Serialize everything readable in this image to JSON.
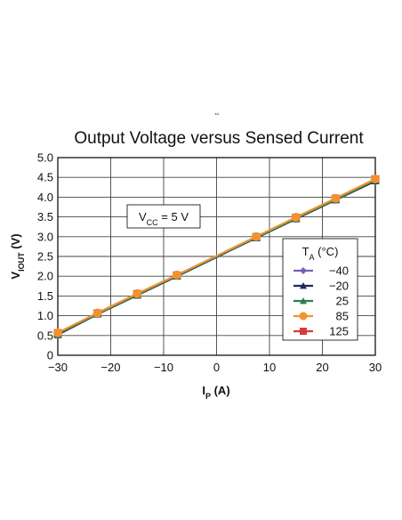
{
  "chart_data": {
    "type": "line",
    "title": "Output Voltage versus Sensed Current",
    "top_mark": "ʻʻ",
    "xlabel": {
      "main": "I",
      "sub": "P",
      "rest": " (A)"
    },
    "ylabel": {
      "main": "V",
      "sub": "IOUT",
      "rest": " (V)"
    },
    "xlim": [
      -30,
      30
    ],
    "ylim": [
      0,
      5.0
    ],
    "xticks": [
      -30,
      -20,
      -10,
      0,
      10,
      20,
      30
    ],
    "xtick_labels": [
      "−30",
      "−20",
      "−10",
      "0",
      "10",
      "20",
      "30"
    ],
    "yticks": [
      0,
      0.5,
      1.0,
      1.5,
      2.0,
      2.5,
      3.0,
      3.5,
      4.0,
      4.5,
      5.0
    ],
    "ytick_labels": [
      "0",
      "0.5",
      "1.0",
      "1.5",
      "2.0",
      "2.5",
      "3.0",
      "3.5",
      "4.0",
      "4.5",
      "5.0"
    ],
    "grid": true,
    "annotation": {
      "main": "V",
      "sub": "CC",
      "rest": " = 5 V"
    },
    "legend": {
      "title": {
        "main": "T",
        "sub": "A",
        "rest": " (°C)"
      },
      "placement": "bottom-right"
    },
    "x": [
      -30,
      -22.5,
      -15,
      -7.5,
      7.5,
      15,
      22.5,
      30
    ],
    "series": [
      {
        "name": "−40",
        "color": "#7b5fb0",
        "marker": "diamond",
        "values": [
          0.52,
          1.04,
          1.52,
          2.0,
          2.97,
          3.45,
          3.93,
          4.41
        ]
      },
      {
        "name": "−20",
        "color": "#1e2a5a",
        "marker": "triangle",
        "values": [
          0.52,
          1.04,
          1.52,
          2.0,
          2.97,
          3.45,
          3.93,
          4.41
        ]
      },
      {
        "name": "25",
        "color": "#2e7d4f",
        "marker": "triangle",
        "values": [
          0.54,
          1.05,
          1.53,
          2.01,
          2.98,
          3.46,
          3.94,
          4.43
        ]
      },
      {
        "name": "85",
        "color": "#f0922e",
        "marker": "circle",
        "values": [
          0.57,
          1.07,
          1.56,
          2.03,
          3.0,
          3.49,
          3.97,
          4.46
        ]
      },
      {
        "name": "125",
        "color": "#d83a3a",
        "marker": "square",
        "values": [
          0.56,
          1.06,
          1.55,
          2.02,
          2.99,
          3.48,
          3.96,
          4.45
        ]
      }
    ],
    "draw_order": [
      4,
      0,
      1,
      2,
      3
    ]
  }
}
